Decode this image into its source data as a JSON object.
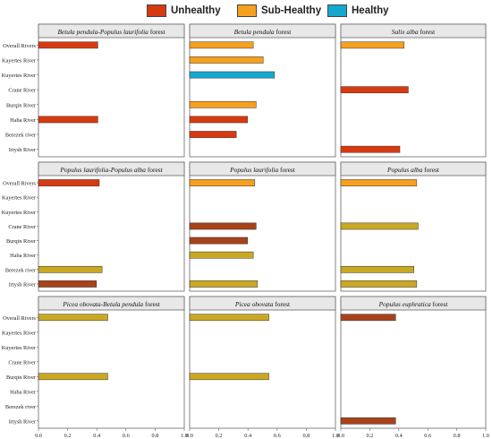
{
  "legend": {
    "entries": [
      {
        "label": "Unhealthy",
        "color": "#D73A10"
      },
      {
        "label": "Sub-Healthy",
        "color": "#F5A01F"
      },
      {
        "label": "Healthy",
        "color": "#14A8CF"
      }
    ]
  },
  "chart_data": {
    "type": "bar",
    "orientation": "horizontal",
    "xlim": [
      0,
      1
    ],
    "xticks": [
      "0.0",
      "0.2",
      "0.4",
      "0.6",
      "0.8",
      "1.0"
    ],
    "grid": false,
    "legend_position": "top-center",
    "colors": {
      "unhealthy": "#D73A10",
      "sub_healthy": "#F5A01F",
      "healthy": "#14A8CF",
      "dark_brown": "#A8421A",
      "olive": "#C9A824"
    },
    "panels": [
      {
        "title_pre": "",
        "title_italic": "Betula pendula-Populus laurifolia",
        "title_post": " forest",
        "categories": [
          "Overall Rivers",
          "Kayertes River",
          "Kuyertes River",
          "Crane River",
          "Burqin River",
          "Haba River",
          "Berezek river",
          "Irtysh River"
        ],
        "values": [
          0.42,
          null,
          null,
          null,
          null,
          0.42,
          null,
          null
        ],
        "bar_colors": [
          "unhealthy",
          null,
          null,
          null,
          null,
          "unhealthy",
          null,
          null
        ]
      },
      {
        "title_pre": "",
        "title_italic": "Betula pendula",
        "title_post": " forest",
        "categories": [],
        "values": [
          0.45,
          0.52,
          0.6,
          null,
          0.47,
          0.41,
          0.33,
          null
        ],
        "bar_colors": [
          "sub_healthy",
          "sub_healthy",
          "healthy",
          null,
          "sub_healthy",
          "unhealthy",
          "unhealthy",
          null
        ]
      },
      {
        "title_pre": "",
        "title_italic": "Salix alba",
        "title_post": " forest",
        "categories": [],
        "values": [
          0.45,
          null,
          null,
          0.48,
          null,
          null,
          null,
          0.42
        ],
        "bar_colors": [
          "sub_healthy",
          null,
          null,
          "unhealthy",
          null,
          null,
          null,
          "unhealthy"
        ]
      },
      {
        "title_pre": "",
        "title_italic": "Populus laurifolia-Populus alba",
        "title_post": " forest",
        "categories": [
          "Overall Rivers",
          "Kayertes River",
          "Kuyertes River",
          "Crane River",
          "Burqin River",
          "Haba River",
          "Berezek river",
          "Irtysh River"
        ],
        "values": [
          0.43,
          null,
          null,
          null,
          null,
          null,
          0.45,
          0.41
        ],
        "bar_colors": [
          "unhealthy",
          null,
          null,
          null,
          null,
          null,
          "olive",
          "dark_brown"
        ]
      },
      {
        "title_pre": "",
        "title_italic": "Populus laurifolia",
        "title_post": " forest",
        "categories": [],
        "values": [
          0.46,
          null,
          null,
          0.47,
          0.41,
          0.45,
          null,
          0.48
        ],
        "bar_colors": [
          "sub_healthy",
          null,
          null,
          "dark_brown",
          "dark_brown",
          "olive",
          null,
          "olive"
        ]
      },
      {
        "title_pre": "",
        "title_italic": "Populus alba",
        "title_post": " forest",
        "categories": [],
        "values": [
          0.54,
          null,
          null,
          0.55,
          null,
          null,
          0.52,
          0.54
        ],
        "bar_colors": [
          "sub_healthy",
          null,
          null,
          "olive",
          null,
          null,
          "olive",
          "olive"
        ]
      },
      {
        "title_pre": "",
        "title_italic": "Picea obovata-Betula pendula",
        "title_post": " forest",
        "categories": [
          "Overall Rivers",
          "Kayertes River",
          "Kuyertes River",
          "Crane River",
          "Burqin River",
          "Haba River",
          "Berezek river",
          "Irtysh River"
        ],
        "values": [
          0.49,
          null,
          null,
          null,
          0.49,
          null,
          null,
          null
        ],
        "bar_colors": [
          "olive",
          null,
          null,
          null,
          "olive",
          null,
          null,
          null
        ]
      },
      {
        "title_pre": "",
        "title_italic": "Picea obovata",
        "title_post": " forest",
        "categories": [],
        "values": [
          0.56,
          null,
          null,
          null,
          0.56,
          null,
          null,
          null
        ],
        "bar_colors": [
          "olive",
          null,
          null,
          null,
          "olive",
          null,
          null,
          null
        ]
      },
      {
        "title_pre": "",
        "title_italic": "Populus euphratica",
        "title_post": " forest",
        "categories": [],
        "values": [
          0.39,
          null,
          null,
          null,
          null,
          null,
          null,
          0.39
        ],
        "bar_colors": [
          "dark_brown",
          null,
          null,
          null,
          null,
          null,
          null,
          "dark_brown"
        ]
      }
    ]
  }
}
